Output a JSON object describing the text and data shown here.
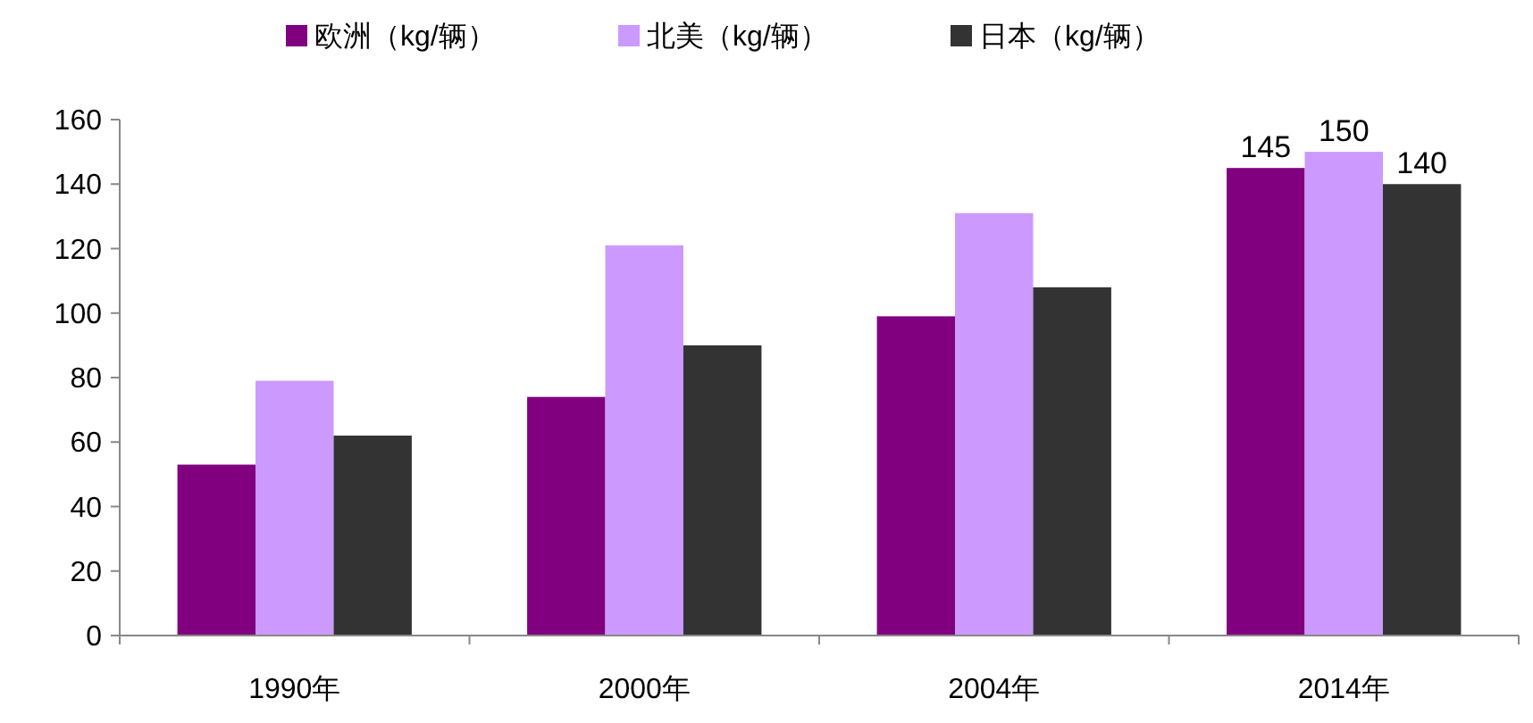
{
  "chart_data": {
    "type": "bar",
    "categories": [
      "1990年",
      "2000年",
      "2004年",
      "2014年"
    ],
    "series": [
      {
        "name": "欧洲（kg/辆）",
        "color": "#800080",
        "values": [
          53,
          74,
          99,
          145
        ],
        "value_labels": [
          null,
          null,
          null,
          "145"
        ]
      },
      {
        "name": "北美（kg/辆）",
        "color": "#cc99ff",
        "values": [
          79,
          121,
          131,
          150
        ],
        "value_labels": [
          null,
          null,
          null,
          "150"
        ]
      },
      {
        "name": "日本（kg/辆）",
        "color": "#333333",
        "values": [
          62,
          90,
          108,
          140
        ],
        "value_labels": [
          null,
          null,
          null,
          "140"
        ]
      }
    ],
    "ylim": [
      0,
      160
    ],
    "yticks": [
      0,
      20,
      40,
      60,
      80,
      100,
      120,
      140,
      160
    ],
    "grid": false,
    "legend": "top"
  }
}
